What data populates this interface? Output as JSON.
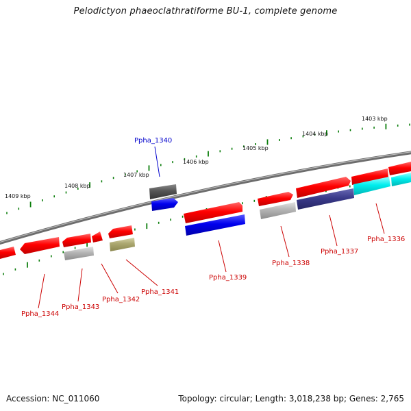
{
  "title": "Pelodictyon phaeoclathratiforme BU-1, complete genome",
  "footer": {
    "accession": "Accession: NC_011060",
    "summary": "Topology: circular; Length: 3,018,238 bp; Genes: 2,765"
  },
  "scale_labels": [
    {
      "text": "1409 kbp",
      "kbp": 1409
    },
    {
      "text": "1408 kbp",
      "kbp": 1408
    },
    {
      "text": "1407 kbp",
      "kbp": 1407
    },
    {
      "text": "1406 kbp",
      "kbp": 1406
    },
    {
      "text": "1405 kbp",
      "kbp": 1405
    },
    {
      "text": "1404 kbp",
      "kbp": 1404
    },
    {
      "text": "1403 kbp",
      "kbp": 1403
    }
  ],
  "genes": [
    {
      "label": "Ppha_1340",
      "strand": "upper",
      "highlight": true
    },
    {
      "label": "Ppha_1344",
      "strand": "lower"
    },
    {
      "label": "Ppha_1343",
      "strand": "lower"
    },
    {
      "label": "Ppha_1342",
      "strand": "lower"
    },
    {
      "label": "Ppha_1341",
      "strand": "lower"
    },
    {
      "label": "Ppha_1339",
      "strand": "lower"
    },
    {
      "label": "Ppha_1338",
      "strand": "lower"
    },
    {
      "label": "Ppha_1337",
      "strand": "lower"
    },
    {
      "label": "Ppha_1336",
      "strand": "lower"
    }
  ],
  "colors": {
    "red": "#ff0000",
    "blue": "#0000ee",
    "darkgray": "#555555",
    "lightgray": "#aaaaaa",
    "olive": "#aaa66e",
    "navy": "#3a3a8a",
    "cyan": "#00eeee",
    "tick_green": "#0a7d0a",
    "backbone": "#777777",
    "label_red": "#cc0000",
    "label_blue": "#0000cc"
  }
}
